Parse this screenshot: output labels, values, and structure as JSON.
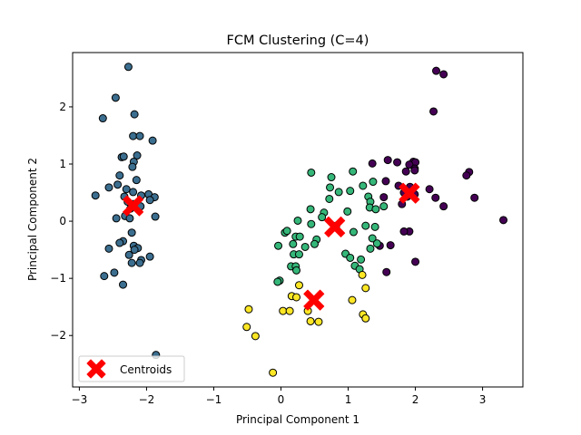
{
  "chart_data": {
    "type": "scatter",
    "title": "FCM Clustering (C=4)",
    "xlabel": "Principal Component 1",
    "ylabel": "Principal Component 2",
    "xlim": [
      -3.1,
      3.6
    ],
    "ylim": [
      -2.9,
      2.95
    ],
    "xticks": [
      -3,
      -2,
      -1,
      0,
      1,
      2,
      3
    ],
    "yticks": [
      -2,
      -1,
      0,
      1,
      2
    ],
    "xtick_labels": [
      "−3",
      "−2",
      "−1",
      "0",
      "1",
      "2",
      "3"
    ],
    "ytick_labels": [
      "−2",
      "−1",
      "0",
      "1",
      "2"
    ],
    "grid": false,
    "legend": {
      "position": "lower-left",
      "entries": [
        "Centroids"
      ]
    },
    "colors": {
      "cluster_blue": "#3b6e8f",
      "cluster_purple": "#440154",
      "cluster_green": "#35b779",
      "cluster_yellow": "#fde725",
      "centroid": "#ff0000",
      "edge": "#000000"
    },
    "series": [
      {
        "color_key": "cluster_blue",
        "points": [
          [
            -2.27,
            2.7
          ],
          [
            -2.46,
            2.16
          ],
          [
            -2.65,
            1.8
          ],
          [
            -2.18,
            1.87
          ],
          [
            -2.2,
            1.49
          ],
          [
            -2.1,
            1.49
          ],
          [
            -1.91,
            1.41
          ],
          [
            -2.37,
            1.12
          ],
          [
            -2.34,
            1.13
          ],
          [
            -2.14,
            1.15
          ],
          [
            -2.19,
            1.04
          ],
          [
            -2.21,
            0.95
          ],
          [
            -2.4,
            0.8
          ],
          [
            -2.15,
            0.72
          ],
          [
            -2.56,
            0.59
          ],
          [
            -2.43,
            0.64
          ],
          [
            -2.3,
            0.56
          ],
          [
            -2.2,
            0.51
          ],
          [
            -2.08,
            0.45
          ],
          [
            -1.97,
            0.47
          ],
          [
            -1.88,
            0.42
          ],
          [
            -1.95,
            0.37
          ],
          [
            -2.76,
            0.45
          ],
          [
            -2.33,
            0.43
          ],
          [
            -2.28,
            0.34
          ],
          [
            -2.2,
            0.3
          ],
          [
            -2.09,
            0.26
          ],
          [
            -2.24,
            0.22
          ],
          [
            -1.87,
            0.08
          ],
          [
            -2.45,
            0.05
          ],
          [
            -2.32,
            0.09
          ],
          [
            -2.25,
            0.05
          ],
          [
            -2.22,
            -0.2
          ],
          [
            -2.35,
            -0.35
          ],
          [
            -2.4,
            -0.38
          ],
          [
            -2.19,
            -0.43
          ],
          [
            -2.13,
            -0.47
          ],
          [
            -2.18,
            -0.5
          ],
          [
            -2.56,
            -0.48
          ],
          [
            -2.26,
            -0.59
          ],
          [
            -1.95,
            -0.62
          ],
          [
            -2.08,
            -0.68
          ],
          [
            -2.1,
            -0.73
          ],
          [
            -2.22,
            -0.73
          ],
          [
            -2.48,
            -0.9
          ],
          [
            -2.63,
            -0.96
          ],
          [
            -2.35,
            -1.11
          ],
          [
            -1.86,
            -2.34
          ]
        ]
      },
      {
        "color_key": "cluster_purple",
        "points": [
          [
            2.31,
            2.63
          ],
          [
            2.42,
            2.57
          ],
          [
            2.27,
            1.92
          ],
          [
            1.59,
            1.07
          ],
          [
            1.73,
            1.03
          ],
          [
            1.36,
            1.01
          ],
          [
            1.97,
            1.04
          ],
          [
            2.0,
            1.03
          ],
          [
            1.91,
            0.99
          ],
          [
            1.99,
            0.92
          ],
          [
            1.99,
            0.89
          ],
          [
            1.86,
            0.87
          ],
          [
            2.8,
            0.86
          ],
          [
            2.76,
            0.8
          ],
          [
            1.56,
            0.7
          ],
          [
            1.75,
            0.62
          ],
          [
            1.92,
            0.6
          ],
          [
            2.21,
            0.56
          ],
          [
            1.83,
            0.5
          ],
          [
            1.99,
            0.47
          ],
          [
            1.53,
            0.42
          ],
          [
            1.88,
            0.43
          ],
          [
            2.3,
            0.41
          ],
          [
            2.88,
            0.41
          ],
          [
            1.8,
            0.3
          ],
          [
            2.42,
            0.26
          ],
          [
            3.31,
            0.02
          ],
          [
            1.91,
            -0.18
          ],
          [
            1.83,
            -0.18
          ],
          [
            1.63,
            -0.42
          ],
          [
            1.47,
            -0.43
          ],
          [
            2.0,
            -0.71
          ],
          [
            1.57,
            -0.89
          ]
        ]
      },
      {
        "color_key": "cluster_green",
        "points": [
          [
            0.45,
            0.85
          ],
          [
            1.07,
            0.87
          ],
          [
            0.75,
            0.77
          ],
          [
            1.22,
            0.62
          ],
          [
            0.73,
            0.59
          ],
          [
            1.37,
            0.69
          ],
          [
            1.03,
            0.53
          ],
          [
            0.86,
            0.51
          ],
          [
            1.3,
            0.43
          ],
          [
            0.72,
            0.39
          ],
          [
            1.33,
            0.34
          ],
          [
            1.53,
            0.26
          ],
          [
            1.32,
            0.24
          ],
          [
            1.41,
            0.21
          ],
          [
            0.44,
            0.21
          ],
          [
            0.99,
            0.17
          ],
          [
            0.64,
            0.15
          ],
          [
            0.61,
            0.07
          ],
          [
            0.25,
            0.01
          ],
          [
            1.26,
            -0.08
          ],
          [
            0.82,
            -0.08
          ],
          [
            0.45,
            -0.05
          ],
          [
            1.4,
            -0.1
          ],
          [
            0.06,
            -0.2
          ],
          [
            0.09,
            -0.17
          ],
          [
            1.08,
            -0.19
          ],
          [
            0.22,
            -0.27
          ],
          [
            0.53,
            -0.32
          ],
          [
            0.28,
            -0.27
          ],
          [
            1.36,
            -0.3
          ],
          [
            0.5,
            -0.4
          ],
          [
            1.43,
            -0.39
          ],
          [
            0.18,
            -0.4
          ],
          [
            0.36,
            -0.45
          ],
          [
            -0.04,
            -0.43
          ],
          [
            1.33,
            -0.48
          ],
          [
            0.19,
            -0.58
          ],
          [
            0.96,
            -0.57
          ],
          [
            0.27,
            -0.58
          ],
          [
            1.03,
            -0.64
          ],
          [
            1.19,
            -0.67
          ],
          [
            1.1,
            -0.78
          ],
          [
            0.15,
            -0.79
          ],
          [
            0.22,
            -0.79
          ],
          [
            0.23,
            -0.86
          ],
          [
            1.17,
            -0.84
          ],
          [
            -0.02,
            -1.04
          ],
          [
            -0.05,
            -1.06
          ]
        ]
      },
      {
        "color_key": "cluster_yellow",
        "points": [
          [
            1.21,
            -0.94
          ],
          [
            0.27,
            -1.12
          ],
          [
            1.26,
            -1.17
          ],
          [
            0.16,
            -1.31
          ],
          [
            0.23,
            -1.33
          ],
          [
            1.06,
            -1.38
          ],
          [
            -0.48,
            -1.54
          ],
          [
            0.03,
            -1.57
          ],
          [
            0.13,
            -1.57
          ],
          [
            0.4,
            -1.57
          ],
          [
            1.22,
            -1.63
          ],
          [
            1.26,
            -1.7
          ],
          [
            0.44,
            -1.75
          ],
          [
            0.56,
            -1.76
          ],
          [
            -0.51,
            -1.85
          ],
          [
            -0.38,
            -2.01
          ],
          [
            -0.12,
            -2.65
          ]
        ]
      }
    ],
    "centroids": [
      [
        -2.2,
        0.27
      ],
      [
        1.91,
        0.49
      ],
      [
        0.8,
        -0.1
      ],
      [
        0.49,
        -1.38
      ]
    ]
  }
}
